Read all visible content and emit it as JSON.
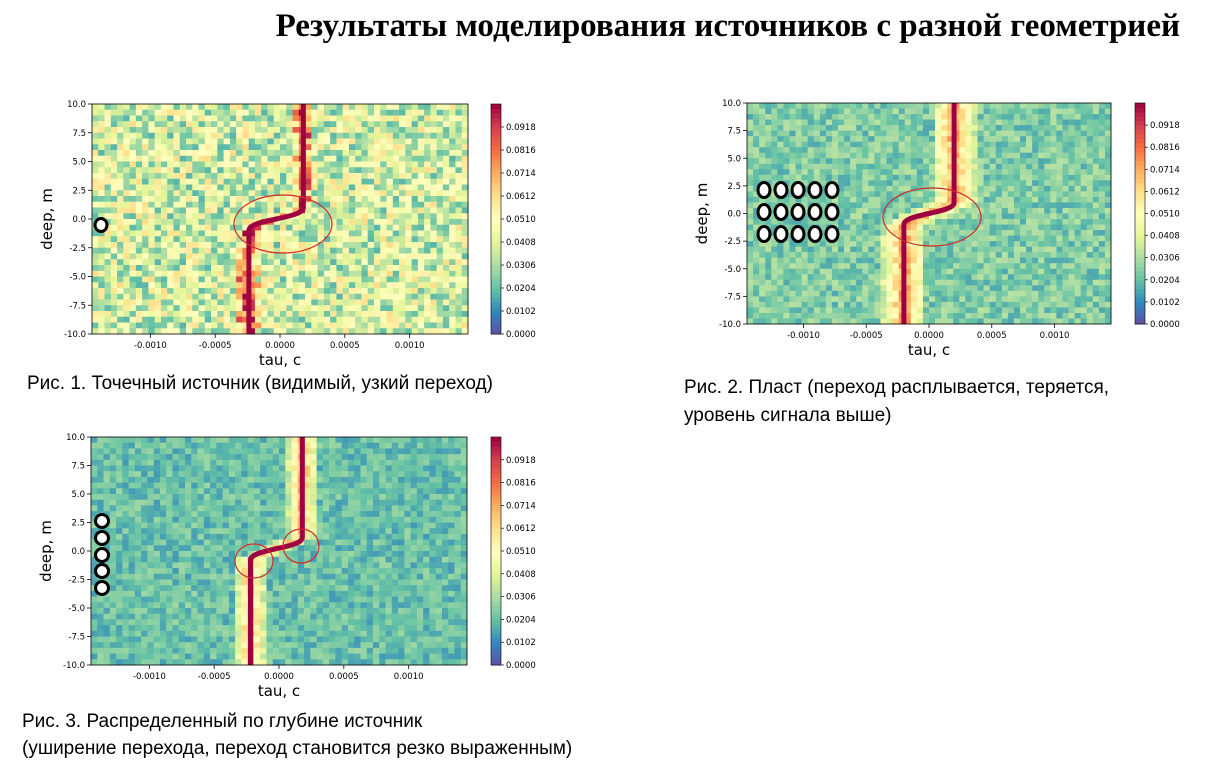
{
  "slide": {
    "title": "Результаты моделирования источников с разной геометрией",
    "captions": {
      "fig1": "Рис. 1. Точечный источник (видимый, узкий переход)",
      "fig2_line1": "Рис. 2. Пласт (переход расплывается, теряется,",
      "fig2_line2": "уровень сигнала выше)",
      "fig3_line1": "Рис. 3. Распределенный по глубине источник",
      "fig3_line2": "(уширение перехода, переход становится резко выраженным)"
    }
  },
  "chart_data": [
    {
      "type": "heatmap",
      "xlabel": "tau, c",
      "ylabel": "deep, m",
      "xlim": [
        -0.00145,
        0.00145
      ],
      "ylim": [
        -10,
        10
      ],
      "xticks": [
        "-0.0010",
        "-0.0005",
        "0.0000",
        "0.0005",
        "0.0010"
      ],
      "xtick_values": [
        -0.001,
        -0.0005,
        0,
        0.0005,
        0.001
      ],
      "yticks": [
        "-10.0",
        "-7.5",
        "-5.0",
        "-2.5",
        "0.0",
        "2.5",
        "5.0",
        "7.5",
        "10.0"
      ],
      "ytick_values": [
        -10,
        -7.5,
        -5,
        -2.5,
        0,
        2.5,
        5,
        7.5,
        10
      ],
      "colorbar_ticks": [
        "0.0000",
        "0.0102",
        "0.0204",
        "0.0306",
        "0.0408",
        "0.0510",
        "0.0612",
        "0.0714",
        "0.0816",
        "0.0918"
      ],
      "colorbar_range": [
        0,
        0.102
      ],
      "colormap": "Spectral_r",
      "peak_path": {
        "lower_tau": -0.00024,
        "upper_tau": 0.00018,
        "transition_depth": [
          -1,
          1
        ]
      },
      "noise_level": 0.04,
      "source": {
        "shape": "point",
        "rows": 1,
        "cols": 1,
        "depth": -0.5
      },
      "annotation": "ellipse around transition",
      "circle_marks": [
        {
          "tau": 0,
          "deep": 0
        }
      ]
    },
    {
      "type": "heatmap",
      "xlabel": "tau, c",
      "ylabel": "deep, m",
      "xlim": [
        -0.00145,
        0.00145
      ],
      "ylim": [
        -10,
        10
      ],
      "xticks": [
        "-0.0010",
        "-0.0005",
        "0.0000",
        "0.0005",
        "0.0010"
      ],
      "xtick_values": [
        -0.001,
        -0.0005,
        0,
        0.0005,
        0.001
      ],
      "yticks": [
        "-10.0",
        "-7.5",
        "-5.0",
        "-2.5",
        "0.0",
        "2.5",
        "5.0",
        "7.5",
        "10.0"
      ],
      "ytick_values": [
        -10,
        -7.5,
        -5,
        -2.5,
        0,
        2.5,
        5,
        7.5,
        10
      ],
      "colorbar_ticks": [
        "0.0000",
        "0.0102",
        "0.0204",
        "0.0306",
        "0.0408",
        "0.0510",
        "0.0612",
        "0.0714",
        "0.0816",
        "0.0918"
      ],
      "colorbar_range": [
        0,
        0.102
      ],
      "colormap": "Spectral_r",
      "peak_path": {
        "lower_tau": -0.0002,
        "upper_tau": 0.0002,
        "transition_depth": [
          -1,
          1
        ]
      },
      "noise_level": 0.035,
      "source": {
        "shape": "layer",
        "rows": 3,
        "cols": 5,
        "depth": 0
      },
      "annotation": "ellipse around transition",
      "circle_marks": [
        {
          "tau": 0,
          "deep": -0.3
        }
      ]
    },
    {
      "type": "heatmap",
      "xlabel": "tau, c",
      "ylabel": "deep, m",
      "xlim": [
        -0.00145,
        0.00145
      ],
      "ylim": [
        -10,
        10
      ],
      "xticks": [
        "-0.0010",
        "-0.0005",
        "0.0000",
        "0.0005",
        "0.0010"
      ],
      "xtick_values": [
        -0.001,
        -0.0005,
        0,
        0.0005,
        0.001
      ],
      "yticks": [
        "-10.0",
        "-7.5",
        "-5.0",
        "-2.5",
        "0.0",
        "2.5",
        "5.0",
        "7.5",
        "10.0"
      ],
      "ytick_values": [
        -10,
        -7.5,
        -5,
        -2.5,
        0,
        2.5,
        5,
        7.5,
        10
      ],
      "colorbar_ticks": [
        "0.0000",
        "0.0102",
        "0.0204",
        "0.0306",
        "0.0408",
        "0.0510",
        "0.0612",
        "0.0714",
        "0.0816",
        "0.0918"
      ],
      "colorbar_range": [
        0,
        0.102
      ],
      "colormap": "Spectral_r",
      "peak_path": {
        "lower_tau": -0.00022,
        "upper_tau": 0.00018,
        "transition_depth": [
          -0.8,
          1.2
        ]
      },
      "noise_level": 0.03,
      "source": {
        "shape": "distributed",
        "rows": 5,
        "cols": 1,
        "depth": 0
      },
      "annotation": "two circles at transition ends",
      "circle_marks": [
        {
          "tau": -0.00022,
          "deep": -0.8
        },
        {
          "tau": 0.00013,
          "deep": 0.4
        }
      ]
    }
  ]
}
